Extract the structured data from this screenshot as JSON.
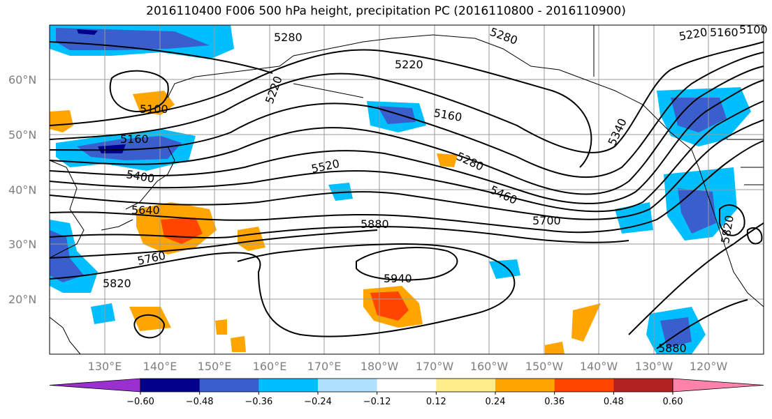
{
  "title": "2016110400 F006 500 hPa height, precipitation PC (2016110800 - 2016110900)",
  "map": {
    "lat_labels": [
      "60°N",
      "50°N",
      "40°N",
      "30°N",
      "20°N"
    ],
    "lon_labels": [
      "130°E",
      "140°E",
      "150°E",
      "160°E",
      "170°E",
      "180°W",
      "170°W",
      "160°W",
      "150°W",
      "140°W",
      "130°W",
      "120°W"
    ],
    "contour_labels": [
      "5280",
      "5220",
      "5160",
      "5100",
      "5160",
      "5400",
      "5520",
      "5280",
      "5460",
      "5640",
      "5700",
      "5880",
      "5760",
      "5820",
      "5940",
      "5340",
      "5280",
      "5220",
      "5160",
      "5100",
      "5820",
      "5880",
      "5220"
    ]
  },
  "colorbar": {
    "tick_labels": [
      "−0.60",
      "−0.48",
      "−0.36",
      "−0.24",
      "−0.12",
      "0.12",
      "0.24",
      "0.36",
      "0.48",
      "0.60"
    ],
    "colors": [
      "#9b30d0",
      "#00008b",
      "#3a5fcd",
      "#00bfff",
      "#b0e2ff",
      "#ffffff",
      "#ffec8b",
      "#ffa500",
      "#ff4500",
      "#b22222",
      "#ff82ab"
    ]
  }
}
